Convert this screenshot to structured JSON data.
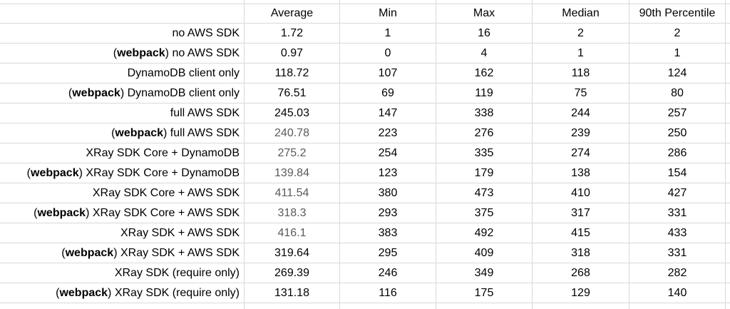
{
  "chart_data": {
    "type": "table",
    "colors": {
      "background": "#ffffff",
      "grid": "#d9d9d9",
      "text": "#000000",
      "muted_value": "#595959"
    },
    "columns": [
      "",
      "Average",
      "Min",
      "Max",
      "Median",
      "90th Percentile"
    ],
    "rows": [
      {
        "label": "no AWS SDK",
        "pre": "",
        "bold": "",
        "post": "no AWS SDK",
        "average": "1.72",
        "min": "1",
        "max": "16",
        "median": "2",
        "p90": "2",
        "average_color": "#000000"
      },
      {
        "label": "(webpack) no AWS SDK",
        "pre": "(",
        "bold": "webpack",
        "post": ") no AWS SDK",
        "average": "0.97",
        "min": "0",
        "max": "4",
        "median": "1",
        "p90": "1",
        "average_color": "#000000"
      },
      {
        "label": "DynamoDB client only",
        "pre": "",
        "bold": "",
        "post": "DynamoDB client only",
        "average": "118.72",
        "min": "107",
        "max": "162",
        "median": "118",
        "p90": "124",
        "average_color": "#000000"
      },
      {
        "label": "(webpack) DynamoDB client only",
        "pre": "(",
        "bold": "webpack",
        "post": ") DynamoDB client only",
        "average": "76.51",
        "min": "69",
        "max": "119",
        "median": "75",
        "p90": "80",
        "average_color": "#000000"
      },
      {
        "label": "full AWS SDK",
        "pre": "",
        "bold": "",
        "post": "full AWS SDK",
        "average": "245.03",
        "min": "147",
        "max": "338",
        "median": "244",
        "p90": "257",
        "average_color": "#000000"
      },
      {
        "label": "(webpack) full AWS SDK",
        "pre": "(",
        "bold": "webpack",
        "post": ") full AWS SDK",
        "average": "240.78",
        "min": "223",
        "max": "276",
        "median": "239",
        "p90": "250",
        "average_color": "#595959"
      },
      {
        "label": "XRay SDK Core + DynamoDB",
        "pre": "",
        "bold": "",
        "post": "XRay SDK Core + DynamoDB",
        "average": "275.2",
        "min": "254",
        "max": "335",
        "median": "274",
        "p90": "286",
        "average_color": "#595959"
      },
      {
        "label": "(webpack) XRay SDK Core + DynamoDB",
        "pre": "(",
        "bold": "webpack",
        "post": ") XRay SDK Core + DynamoDB",
        "average": "139.84",
        "min": "123",
        "max": "179",
        "median": "138",
        "p90": "154",
        "average_color": "#595959"
      },
      {
        "label": "XRay SDK Core + AWS SDK",
        "pre": "",
        "bold": "",
        "post": "XRay SDK Core + AWS SDK",
        "average": "411.54",
        "min": "380",
        "max": "473",
        "median": "410",
        "p90": "427",
        "average_color": "#595959"
      },
      {
        "label": "(webpack) XRay SDK Core + AWS SDK",
        "pre": "(",
        "bold": "webpack",
        "post": ") XRay SDK Core + AWS SDK",
        "average": "318.3",
        "min": "293",
        "max": "375",
        "median": "317",
        "p90": "331",
        "average_color": "#595959"
      },
      {
        "label": "XRay SDK + AWS SDK",
        "pre": "",
        "bold": "",
        "post": "XRay SDK + AWS SDK",
        "average": "416.1",
        "min": "383",
        "max": "492",
        "median": "415",
        "p90": "433",
        "average_color": "#595959"
      },
      {
        "label": "(webpack) XRay SDK + AWS SDK",
        "pre": "(",
        "bold": "webpack",
        "post": ") XRay SDK + AWS SDK",
        "average": "319.64",
        "min": "295",
        "max": "409",
        "median": "318",
        "p90": "331",
        "average_color": "#000000"
      },
      {
        "label": "XRay SDK (require only)",
        "pre": "",
        "bold": "",
        "post": "XRay SDK (require only)",
        "average": "269.39",
        "min": "246",
        "max": "349",
        "median": "268",
        "p90": "282",
        "average_color": "#000000"
      },
      {
        "label": "(webpack) XRay SDK (require only)",
        "pre": "(",
        "bold": "webpack",
        "post": ") XRay SDK (require only)",
        "average": "131.18",
        "min": "116",
        "max": "175",
        "median": "129",
        "p90": "140",
        "average_color": "#000000"
      }
    ]
  }
}
